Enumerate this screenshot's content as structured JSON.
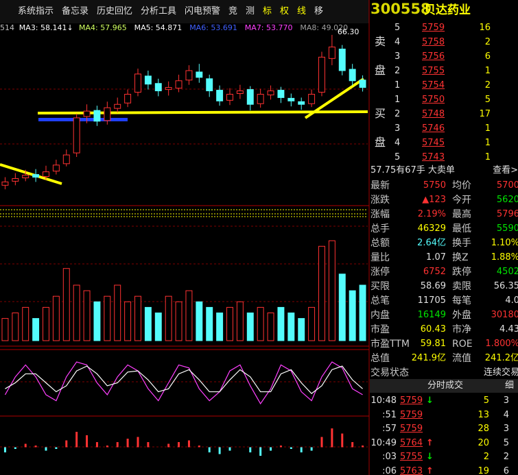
{
  "toolbar": {
    "items": [
      {
        "text": "系统指示",
        "color": "#e0e0e0"
      },
      {
        "text": "备忘录",
        "color": "#e0e0e0"
      },
      {
        "text": "历史回忆",
        "color": "#e0e0e0"
      },
      {
        "text": "分析工具",
        "color": "#e0e0e0"
      },
      {
        "text": "闪电预警",
        "color": "#e0e0e0"
      },
      {
        "text": "竞",
        "color": "#e0e0e0"
      },
      {
        "text": "测",
        "color": "#e0e0e0"
      },
      {
        "text": "标",
        "color": "#ffff00"
      },
      {
        "text": "权",
        "color": "#ffff00"
      },
      {
        "text": "线",
        "color": "#ffff00"
      },
      {
        "text": "移",
        "color": "#e0e0e0"
      }
    ]
  },
  "chart_data": [
    {
      "type": "candlestick",
      "legend": [
        {
          "text": "514",
          "color": "#c0c0c0"
        },
        {
          "text": "MA3: 58.141↓",
          "color": "#ffffff"
        },
        {
          "text": "MA4: 57.965",
          "color": "#d0ff60"
        },
        {
          "text": "MA5: 54.871",
          "color": "#ffffff"
        },
        {
          "text": "MA6: 53.691",
          "color": "#4060ff"
        },
        {
          "text": "MA7: 53.770",
          "color": "#ff40ff"
        },
        {
          "text": "MA8: 49.020",
          "color": "#a0a0a0"
        }
      ],
      "annotation": "66.30",
      "open": [
        44,
        44.6,
        45.1,
        45.6,
        45.3,
        46.1,
        47.2,
        48.8,
        54.2,
        55.1,
        53.6,
        55.4,
        56.2,
        57.8,
        60.2,
        59.1,
        58.2,
        58.4,
        59.6,
        60.8,
        59.8,
        58.1,
        56.6,
        57.6,
        58.2,
        56.1,
        57.4,
        58.1,
        56.9,
        56.4,
        56.1,
        57.8,
        62.8,
        64.2,
        61.2,
        59.6
      ],
      "high": [
        45.2,
        45.8,
        46.3,
        46.4,
        46.9,
        47.8,
        49.3,
        54.6,
        56,
        55.8,
        56.4,
        57,
        58.2,
        61.3,
        61,
        59.8,
        59.4,
        60.4,
        61.8,
        62,
        60.4,
        58.8,
        58.4,
        58.9,
        58.7,
        58.3,
        58.8,
        58.6,
        57.6,
        57,
        58.2,
        63.8,
        66.3,
        64.8,
        62,
        60.3
      ],
      "low": [
        43.4,
        44,
        44.6,
        44.5,
        44.8,
        45.6,
        46.8,
        48.2,
        53.2,
        52.8,
        53,
        54.8,
        55.6,
        57.2,
        58.2,
        57.2,
        57.3,
        57.8,
        58.9,
        59.2,
        57.1,
        55.8,
        55.9,
        56.8,
        55.1,
        55.5,
        56.7,
        56.2,
        55.7,
        55.2,
        55.6,
        57.2,
        61.8,
        60.3,
        58.8,
        57.9
      ],
      "close": [
        44.5,
        45,
        45.5,
        45.2,
        46,
        47,
        48.5,
        54,
        55,
        53.5,
        55.5,
        56,
        57.5,
        60.5,
        59,
        58,
        58.5,
        59.5,
        61,
        60,
        58,
        56.5,
        57.5,
        58,
        56,
        57.5,
        58,
        57,
        56.5,
        56,
        57.5,
        63,
        64.5,
        61,
        59.5,
        58.5
      ],
      "ylim": [
        42,
        67
      ],
      "up_color": "#ff3232",
      "down_color": "#54fcfc"
    },
    {
      "type": "bar",
      "values": [
        2,
        2.5,
        3,
        2,
        3,
        4,
        6.5,
        5,
        4.5,
        3.5,
        4,
        5,
        3.5,
        4,
        3,
        2.5,
        4,
        3.5,
        4.5,
        3.5,
        3,
        2.5,
        3,
        3.5,
        2.5,
        3,
        2.5,
        3,
        2.5,
        2,
        3,
        8.5,
        9,
        6,
        4.5,
        5
      ],
      "ylim": [
        0,
        10
      ],
      "color": "#54fcfc"
    },
    {
      "type": "line",
      "series": [
        {
          "color": "#ff40ff",
          "values": [
            30,
            60,
            80,
            60,
            30,
            20,
            60,
            85,
            80,
            50,
            30,
            60,
            80,
            70,
            40,
            20,
            50,
            80,
            75,
            40,
            20,
            35,
            70,
            80,
            45,
            15,
            40,
            80,
            70,
            35,
            20,
            60,
            85,
            75,
            40,
            30
          ]
        },
        {
          "color": "#ffffff",
          "values": [
            40,
            50,
            65,
            65,
            50,
            35,
            45,
            70,
            78,
            65,
            45,
            50,
            68,
            70,
            55,
            35,
            40,
            65,
            72,
            55,
            35,
            35,
            55,
            72,
            60,
            35,
            35,
            65,
            72,
            50,
            32,
            45,
            72,
            78,
            55,
            40
          ]
        }
      ],
      "ylim": [
        0,
        100
      ]
    },
    {
      "type": "bar",
      "values": [
        -0.3,
        -0.1,
        0.2,
        0.1,
        -0.2,
        -0.1,
        0.4,
        0.9,
        0.7,
        0.3,
        0.1,
        0.3,
        0.5,
        0.6,
        0.3,
        0,
        0.2,
        0.3,
        0.4,
        0.1,
        -0.3,
        -0.4,
        -0.2,
        0,
        -0.3,
        -0.5,
        -0.2,
        0.1,
        -0.1,
        -0.3,
        -0.2,
        0.6,
        1.1,
        0.8,
        0.3,
        0.1
      ],
      "ylim": [
        -1.5,
        1.5
      ],
      "up_color": "#ff3232",
      "down_color": "#54fcfc"
    }
  ],
  "header": {
    "code": "300558",
    "name": "贝达药业"
  },
  "sell_label": [
    "卖",
    "盘"
  ],
  "buy_label": [
    "买",
    "盘"
  ],
  "sell": [
    [
      "5",
      "5759",
      "16"
    ],
    [
      "4",
      "5758",
      "2"
    ],
    [
      "3",
      "5756",
      "6"
    ],
    [
      "2",
      "5755",
      "1"
    ],
    [
      "1",
      "5754",
      "2"
    ]
  ],
  "buy": [
    [
      "1",
      "5750",
      "5"
    ],
    [
      "2",
      "5748",
      "17"
    ],
    [
      "3",
      "5746",
      "1"
    ],
    [
      "4",
      "5745",
      "1"
    ],
    [
      "5",
      "5743",
      "1"
    ]
  ],
  "big_order": {
    "text": "57.75有67手 大卖单",
    "link": "查看>"
  },
  "quote": [
    [
      {
        "text": "最新"
      },
      {
        "text": "5750",
        "color": "#ff3232"
      },
      {
        "text": "均价"
      },
      {
        "text": "5700",
        "color": "#ff3232"
      }
    ],
    [
      {
        "text": "涨跌"
      },
      {
        "text": "▲123",
        "color": "#ff3232"
      },
      {
        "text": "今开"
      },
      {
        "text": "5620",
        "color": "#00e600"
      }
    ],
    [
      {
        "text": "涨幅"
      },
      {
        "text": "2.19%",
        "color": "#ff3232"
      },
      {
        "text": "最高"
      },
      {
        "text": "5796",
        "color": "#ff3232"
      }
    ],
    [
      {
        "text": "总手"
      },
      {
        "text": "46329",
        "color": "#ffff00"
      },
      {
        "text": "最低"
      },
      {
        "text": "5590",
        "color": "#00e600"
      }
    ],
    [
      {
        "text": "总额"
      },
      {
        "text": "2.64亿",
        "color": "#54fcfc"
      },
      {
        "text": "换手"
      },
      {
        "text": "1.10%",
        "color": "#ffff00"
      }
    ],
    [
      {
        "text": "量比"
      },
      {
        "text": "1.07",
        "color": "#e0e0e0"
      },
      {
        "text": "换Z"
      },
      {
        "text": "1.88%",
        "color": "#ffff00"
      }
    ],
    [
      {
        "text": "涨停"
      },
      {
        "text": "6752",
        "color": "#ff3232"
      },
      {
        "text": "跌停"
      },
      {
        "text": "4502",
        "color": "#00e600"
      }
    ],
    [
      {
        "text": "买限"
      },
      {
        "text": "58.69",
        "color": "#e0e0e0"
      },
      {
        "text": "卖限"
      },
      {
        "text": "56.35",
        "color": "#e0e0e0"
      }
    ],
    [
      {
        "text": "总笔"
      },
      {
        "text": "11705",
        "color": "#e0e0e0"
      },
      {
        "text": "每笔"
      },
      {
        "text": "4.0",
        "color": "#e0e0e0"
      }
    ],
    [
      {
        "text": "内盘"
      },
      {
        "text": "16149",
        "color": "#00e600"
      },
      {
        "text": "外盘"
      },
      {
        "text": "30180",
        "color": "#ff3232"
      }
    ],
    [
      {
        "text": "市盈"
      },
      {
        "text": "60.43",
        "color": "#ffff00"
      },
      {
        "text": "市净"
      },
      {
        "text": "4.43",
        "color": "#e0e0e0"
      }
    ],
    [
      {
        "text": "市盈TTM"
      },
      {
        "text": "59.81",
        "color": "#ffff00"
      },
      {
        "text": "ROE"
      },
      {
        "text": "1.800%",
        "color": "#ff3232"
      }
    ],
    [
      {
        "text": "总值"
      },
      {
        "text": "241.9亿",
        "color": "#ffff00"
      },
      {
        "text": "流值"
      },
      {
        "text": "241.2亿",
        "color": "#ffff00"
      }
    ],
    [
      {
        "text": "交易状态"
      },
      {
        "text": ""
      },
      {
        "text": ""
      },
      {
        "text": "连续交易",
        "color": "#e0e0e0"
      }
    ]
  ],
  "ticks_header": {
    "title": "分时成交",
    "detail": "细"
  },
  "ticks": [
    [
      "10:48",
      "5759",
      "↓",
      "5",
      "3"
    ],
    [
      ":51",
      "5759",
      "",
      "13",
      "4"
    ],
    [
      ":57",
      "5759",
      "",
      "28",
      "3"
    ],
    [
      "10:49",
      "5764",
      "↑",
      "20",
      "5"
    ],
    [
      ":03",
      "5755",
      "↓",
      "2",
      "2"
    ],
    [
      ":06",
      "5763",
      "↑",
      "19",
      "6"
    ]
  ]
}
